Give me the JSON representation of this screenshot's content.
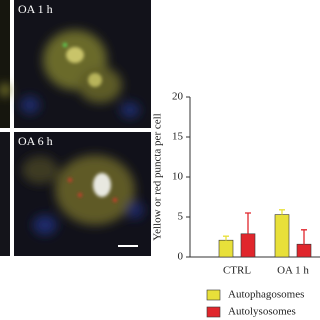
{
  "panels": [
    {
      "label": "OA 1 h"
    },
    {
      "label": "OA 6 h"
    }
  ],
  "chart_data": {
    "type": "bar",
    "y_label": "Yellow or red puncta per cell",
    "categories": [
      "CTRL",
      "OA 1 h"
    ],
    "series": [
      {
        "name": "Autophagosomes",
        "color": "#e8e03a",
        "values": [
          2.1,
          5.3
        ],
        "errors": [
          0.5,
          0.6
        ]
      },
      {
        "name": "Autolysosomes",
        "color": "#e0262c",
        "values": [
          2.9,
          1.6
        ],
        "errors": [
          2.6,
          1.8
        ]
      }
    ],
    "ylim": [
      0,
      20
    ],
    "yticks": [
      0,
      5,
      10,
      15,
      20
    ],
    "grid": false
  }
}
